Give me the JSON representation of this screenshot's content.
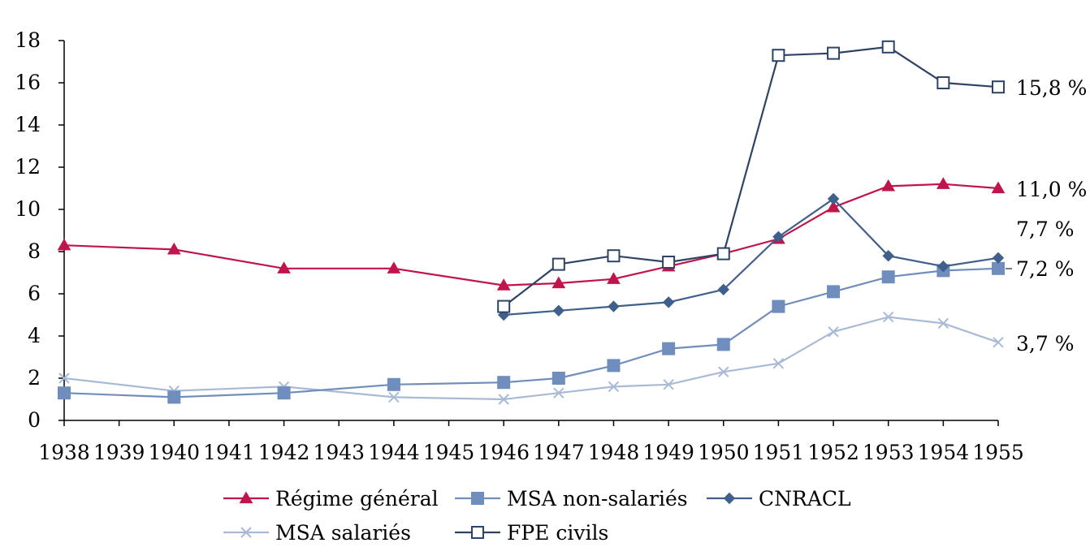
{
  "chart_data": {
    "type": "line",
    "title": "",
    "xlabel": "",
    "ylabel": "",
    "ylim": [
      0,
      18
    ],
    "y_ticks": [
      "0",
      "2",
      "4",
      "6",
      "8",
      "10",
      "12",
      "14",
      "16",
      "18"
    ],
    "x_ticks": [
      "1938",
      "1939",
      "1940",
      "1941",
      "1942",
      "1943",
      "1944",
      "1945",
      "1946",
      "1947",
      "1948",
      "1949",
      "1950",
      "1951",
      "1952",
      "1953",
      "1954",
      "1955"
    ],
    "grid": false,
    "legend_position": "bottom",
    "series": [
      {
        "name": "Régime général",
        "color": "#C0144A",
        "marker": "triangle",
        "points": [
          [
            1938,
            8.3
          ],
          [
            1940,
            8.1
          ],
          [
            1942,
            7.2
          ],
          [
            1944,
            7.2
          ],
          [
            1946,
            6.4
          ],
          [
            1947,
            6.5
          ],
          [
            1948,
            6.7
          ],
          [
            1949,
            7.3
          ],
          [
            1950,
            7.9
          ],
          [
            1951,
            8.6
          ],
          [
            1952,
            10.1
          ],
          [
            1953,
            11.1
          ],
          [
            1954,
            11.2
          ],
          [
            1955,
            11.0
          ]
        ],
        "end_label": "11,0 %"
      },
      {
        "name": "MSA non-salariés",
        "color": "#6F8DBD",
        "marker": "square",
        "points": [
          [
            1938,
            1.3
          ],
          [
            1940,
            1.1
          ],
          [
            1942,
            1.3
          ],
          [
            1944,
            1.7
          ],
          [
            1946,
            1.8
          ],
          [
            1947,
            2.0
          ],
          [
            1948,
            2.6
          ],
          [
            1949,
            3.4
          ],
          [
            1950,
            3.6
          ],
          [
            1951,
            5.4
          ],
          [
            1952,
            6.1
          ],
          [
            1953,
            6.8
          ],
          [
            1954,
            7.1
          ],
          [
            1955,
            7.2
          ]
        ],
        "end_label": "7,2 %"
      },
      {
        "name": "CNRACL",
        "color": "#3F5F8C",
        "marker": "diamond",
        "points": [
          [
            1946,
            5.0
          ],
          [
            1947,
            5.2
          ],
          [
            1948,
            5.4
          ],
          [
            1949,
            5.6
          ],
          [
            1950,
            6.2
          ],
          [
            1951,
            8.7
          ],
          [
            1952,
            10.5
          ],
          [
            1953,
            7.8
          ],
          [
            1954,
            7.3
          ],
          [
            1955,
            7.7
          ]
        ],
        "end_label": "7,7 %"
      },
      {
        "name": "MSA salariés",
        "color": "#A9BAD6",
        "marker": "x",
        "points": [
          [
            1938,
            2.0
          ],
          [
            1940,
            1.4
          ],
          [
            1942,
            1.6
          ],
          [
            1944,
            1.1
          ],
          [
            1946,
            1.0
          ],
          [
            1947,
            1.3
          ],
          [
            1948,
            1.6
          ],
          [
            1949,
            1.7
          ],
          [
            1950,
            2.3
          ],
          [
            1951,
            2.7
          ],
          [
            1952,
            4.2
          ],
          [
            1953,
            4.9
          ],
          [
            1954,
            4.6
          ],
          [
            1955,
            3.7
          ]
        ],
        "end_label": "3,7 %"
      },
      {
        "name": "FPE civils",
        "color": "#2D4466",
        "marker": "open-square",
        "points": [
          [
            1946,
            5.4
          ],
          [
            1947,
            7.4
          ],
          [
            1948,
            7.8
          ],
          [
            1949,
            7.5
          ],
          [
            1950,
            7.9
          ],
          [
            1951,
            17.3
          ],
          [
            1952,
            17.4
          ],
          [
            1953,
            17.7
          ],
          [
            1954,
            16.0
          ],
          [
            1955,
            15.8
          ]
        ],
        "end_label": "15,8 %"
      }
    ]
  }
}
